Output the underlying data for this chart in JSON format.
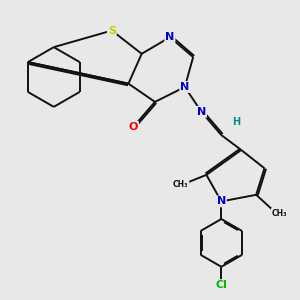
{
  "background_color": "#e8e8e8",
  "figsize": [
    3.0,
    3.0
  ],
  "dpi": 100,
  "atom_colors": {
    "S": "#cccc00",
    "N": "#0000cc",
    "O": "#ff0000",
    "Cl": "#00bb00",
    "H": "#009090",
    "C": "#111111"
  },
  "bond_color": "#111111",
  "bond_width": 1.4
}
